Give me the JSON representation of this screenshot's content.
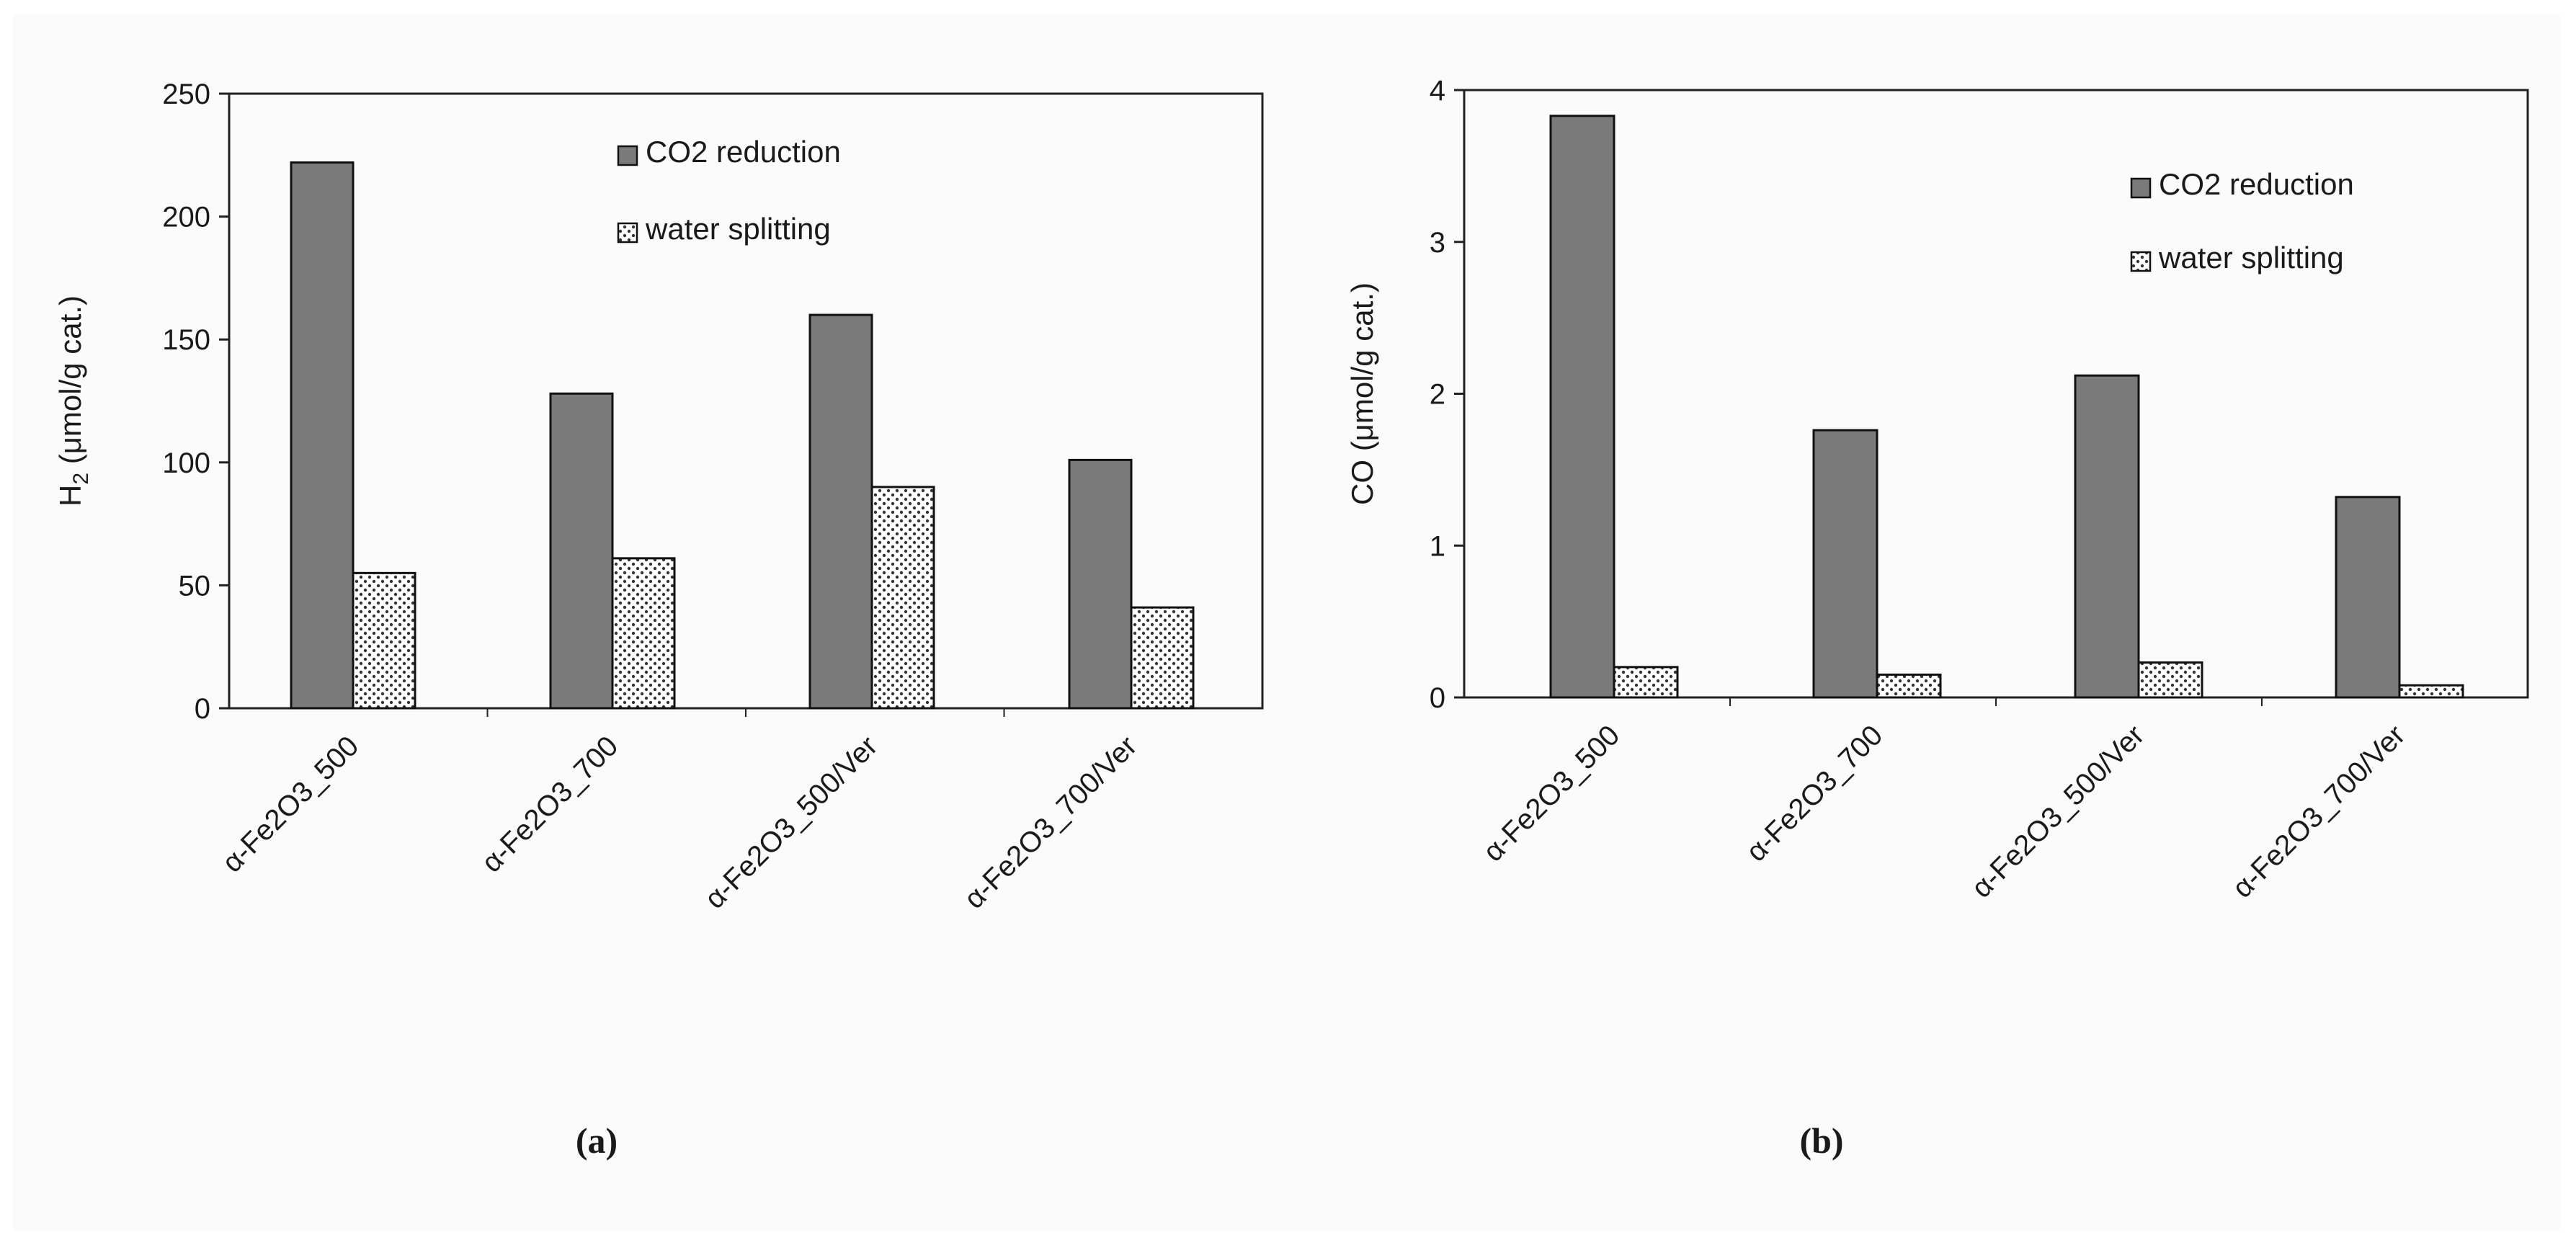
{
  "figure": {
    "panels": [
      "(a)",
      "(b)"
    ]
  },
  "chart_data": [
    {
      "type": "bar",
      "panel_label": "(a)",
      "title": "",
      "ylabel_main": "H",
      "ylabel_sub": "2",
      "ylabel_rest": " (μmol/g cat.)",
      "xlabel": "",
      "categories": [
        "α-Fe2O3_500",
        "α-Fe2O3_700",
        "α-Fe2O3_500/Ver",
        "α-Fe2O3_700/Ver"
      ],
      "ylim": [
        0,
        250
      ],
      "yticks": [
        0,
        50,
        100,
        150,
        200,
        250
      ],
      "legend_position": "top-right",
      "grid": false,
      "series": [
        {
          "name": "CO2 reduction",
          "pattern": "solid",
          "color": "#7a7a7a",
          "values": [
            222,
            128,
            160,
            101
          ]
        },
        {
          "name": "water splitting",
          "pattern": "dots",
          "color": "#ffffff",
          "values": [
            55,
            61,
            90,
            41
          ]
        }
      ]
    },
    {
      "type": "bar",
      "panel_label": "(b)",
      "title": "",
      "ylabel_main": "CO",
      "ylabel_sub": "",
      "ylabel_rest": " (μmol/g cat.)",
      "xlabel": "",
      "categories": [
        "α-Fe2O3_500",
        "α-Fe2O3_700",
        "α-Fe2O3_500/Ver",
        "α-Fe2O3_700/Ver"
      ],
      "ylim": [
        0,
        4
      ],
      "yticks": [
        0,
        1,
        2,
        3,
        4
      ],
      "legend_position": "top-right",
      "grid": false,
      "series": [
        {
          "name": "CO2 reduction",
          "pattern": "solid",
          "color": "#7a7a7a",
          "values": [
            3.83,
            1.76,
            2.12,
            1.32
          ]
        },
        {
          "name": "water splitting",
          "pattern": "dots",
          "color": "#ffffff",
          "values": [
            0.2,
            0.15,
            0.23,
            0.08
          ]
        }
      ]
    }
  ]
}
